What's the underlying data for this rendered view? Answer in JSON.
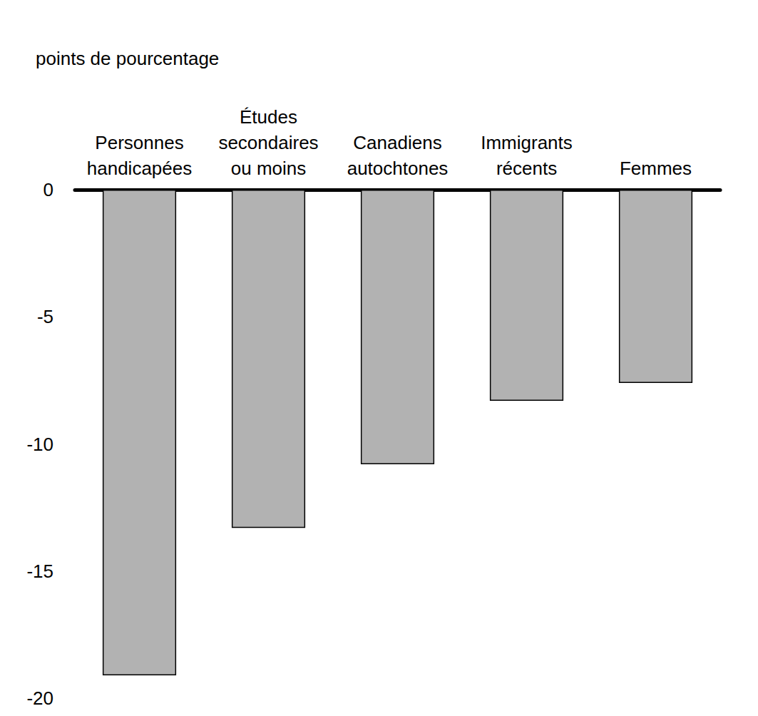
{
  "chart_data": {
    "type": "bar",
    "title": "points de pourcentage",
    "categories": [
      "Personnes\nhandicapées",
      "Études\nsecondaires\nou moins",
      "Canadiens\nautochtones",
      "Immigrants\nrécents",
      "Femmes"
    ],
    "values": [
      -19.1,
      -13.3,
      -10.8,
      -8.3,
      -7.6
    ],
    "color": "#b2b2b2",
    "ylim": [
      -20,
      0
    ],
    "yticks": [
      -20,
      -15,
      -10,
      -5,
      0
    ],
    "grid": false
  }
}
